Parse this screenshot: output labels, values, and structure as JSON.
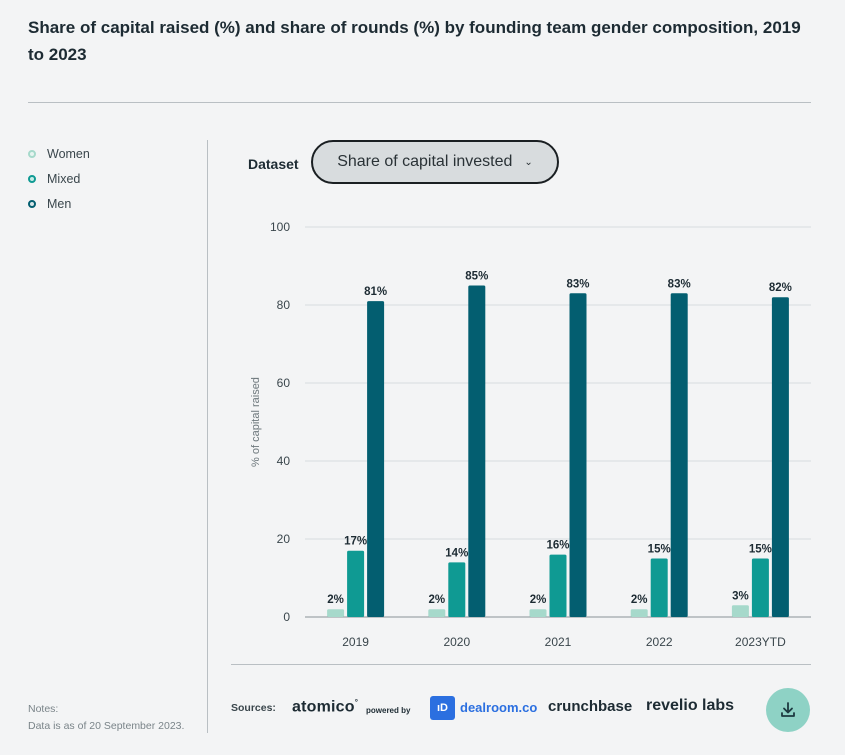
{
  "title": "Share of capital raised (%) and share of rounds (%) by founding team gender composition, 2019 to 2023",
  "legend": [
    {
      "label": "Women",
      "color": "#a6d9cb"
    },
    {
      "label": "Mixed",
      "color": "#0f9a93"
    },
    {
      "label": "Men",
      "color": "#035e70"
    }
  ],
  "dataset": {
    "label": "Dataset",
    "selected": "Share of capital invested"
  },
  "chart_data": {
    "type": "bar",
    "categories": [
      "2019",
      "2020",
      "2021",
      "2022",
      "2023YTD"
    ],
    "series": [
      {
        "name": "Women",
        "values": [
          2,
          2,
          2,
          2,
          3
        ],
        "labels": [
          "2%",
          "2%",
          "2%",
          "2%",
          "3%"
        ],
        "color": "#a6d9cb"
      },
      {
        "name": "Mixed",
        "values": [
          17,
          14,
          16,
          15,
          15
        ],
        "labels": [
          "17%",
          "14%",
          "16%",
          "15%",
          "15%"
        ],
        "color": "#0f9a93"
      },
      {
        "name": "Men",
        "values": [
          81,
          85,
          83,
          83,
          82
        ],
        "labels": [
          "81%",
          "85%",
          "83%",
          "83%",
          "82%"
        ],
        "color": "#035e70"
      }
    ],
    "ylabel": "% of capital raised",
    "yticks": [
      0,
      20,
      40,
      60,
      80,
      100
    ],
    "ylim": [
      0,
      100
    ],
    "grid": true
  },
  "notes": {
    "heading": "Notes:",
    "text": "Data is as of 20 September 2023."
  },
  "sources": {
    "label": "Sources:",
    "atomico": "atomico",
    "atomico_mark": "°",
    "powered_by": "powered by",
    "dealroom": "dealroom.co",
    "dealroom_mark": "ıD",
    "crunchbase": "crunchbase",
    "revelio": "revelio labs"
  },
  "download_icon": "download-icon"
}
